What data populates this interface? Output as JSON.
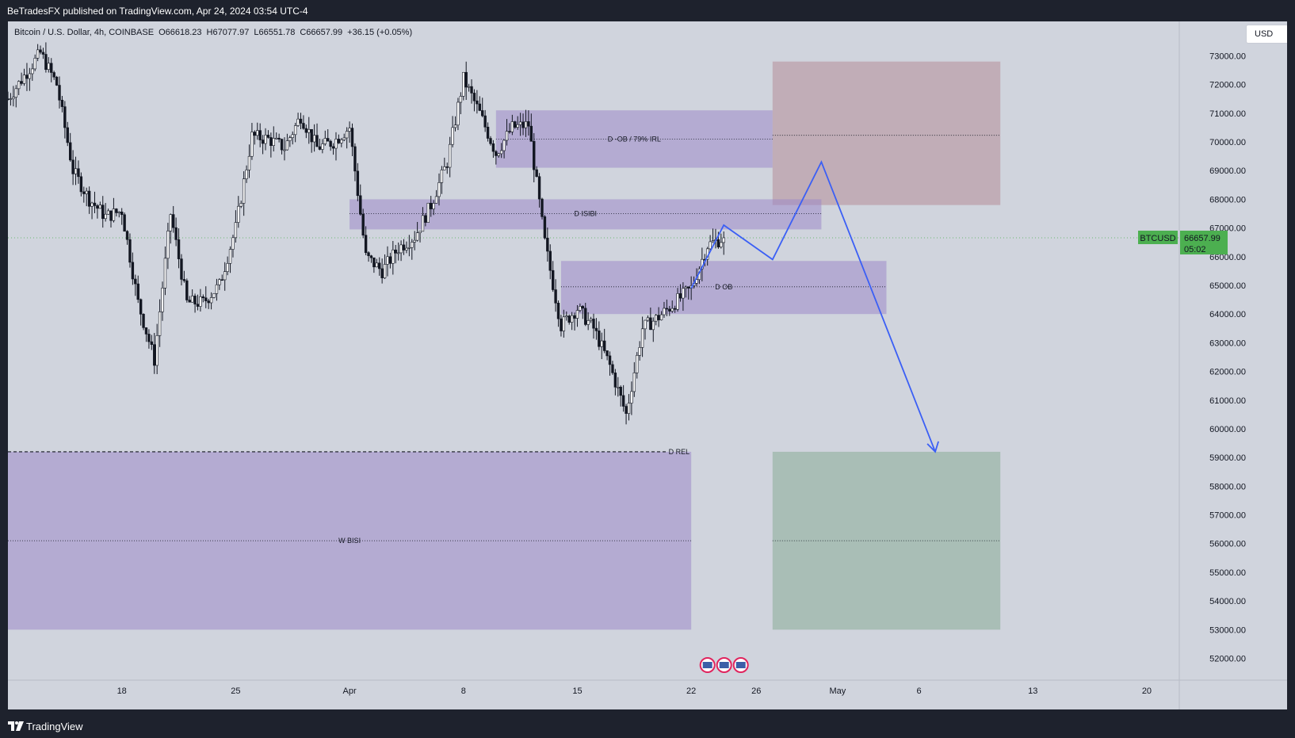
{
  "header": {
    "publisher": "BeTradesFX published on TradingView.com, Apr 24, 2024 03:54 UTC-4"
  },
  "legend": {
    "symbol": "Bitcoin / U.S. Dollar, 4h, COINBASE",
    "open": "O66618.23",
    "high": "H67077.97",
    "low": "L66551.78",
    "close": "C66657.99",
    "change": "+36.15 (+0.05%)"
  },
  "currency_button": "USD",
  "price_tag": {
    "symbol": "BTCUSD",
    "price": "66657.99",
    "countdown": "05:02"
  },
  "footer": {
    "brand": "TradingView"
  },
  "colors": {
    "background": "#d0d4dd",
    "candle_up": "#ffffff",
    "candle_down": "#131722",
    "zone_purple": "#9c88c8",
    "zone_red": "#b58d98",
    "zone_green": "#89ab96",
    "projection_line": "#3b5ff5",
    "price_tag": "#4caf50"
  },
  "chart_data": {
    "type": "candlestick",
    "title": "Bitcoin / U.S. Dollar, 4h, COINBASE",
    "y_axis": {
      "ticks": [
        52000,
        53000,
        54000,
        55000,
        56000,
        57000,
        58000,
        59000,
        60000,
        61000,
        62000,
        63000,
        64000,
        65000,
        66000,
        67000,
        68000,
        69000,
        70000,
        71000,
        72000,
        73000
      ],
      "tick_labels": [
        "52000.00",
        "53000.00",
        "54000.00",
        "55000.00",
        "56000.00",
        "57000.00",
        "58000.00",
        "59000.00",
        "60000.00",
        "61000.00",
        "62000.00",
        "63000.00",
        "64000.00",
        "65000.00",
        "66000.00",
        "67000.00",
        "68000.00",
        "69000.00",
        "70000.00",
        "71000.00",
        "72000.00",
        "73000.00"
      ],
      "range": [
        51600,
        74200
      ]
    },
    "x_axis": {
      "labels": [
        "18",
        "25",
        "Apr",
        "8",
        "15",
        "22",
        "26",
        "May",
        "6",
        "13",
        "20"
      ],
      "dates": [
        "2024-03-18",
        "2024-03-25",
        "2024-04-01",
        "2024-04-08",
        "2024-04-15",
        "2024-04-22",
        "2024-04-26",
        "2024-05-01",
        "2024-05-06",
        "2024-05-13",
        "2024-05-20"
      ],
      "range": [
        "2024-03-11",
        "2024-05-22"
      ]
    },
    "price_path": [
      [
        "2024-03-11",
        71500
      ],
      [
        "2024-03-12",
        72300
      ],
      [
        "2024-03-13",
        73100
      ],
      [
        "2024-03-14",
        72000
      ],
      [
        "2024-03-15",
        69000
      ],
      [
        "2024-03-16",
        68000
      ],
      [
        "2024-03-17",
        67400
      ],
      [
        "2024-03-18",
        67600
      ],
      [
        "2024-03-19",
        64400
      ],
      [
        "2024-03-20",
        62400
      ],
      [
        "2024-03-21",
        67500
      ],
      [
        "2024-03-22",
        64400
      ],
      [
        "2024-03-23",
        64400
      ],
      [
        "2024-03-24",
        65000
      ],
      [
        "2024-03-25",
        67000
      ],
      [
        "2024-03-26",
        70200
      ],
      [
        "2024-03-27",
        70100
      ],
      [
        "2024-03-28",
        69800
      ],
      [
        "2024-03-29",
        70900
      ],
      [
        "2024-03-30",
        69800
      ],
      [
        "2024-03-31",
        70000
      ],
      [
        "2024-04-01",
        70500
      ],
      [
        "2024-04-02",
        66000
      ],
      [
        "2024-04-03",
        65500
      ],
      [
        "2024-04-04",
        66300
      ],
      [
        "2024-04-05",
        66700
      ],
      [
        "2024-04-06",
        67800
      ],
      [
        "2024-04-07",
        69300
      ],
      [
        "2024-04-08",
        72200
      ],
      [
        "2024-04-09",
        71000
      ],
      [
        "2024-04-10",
        69600
      ],
      [
        "2024-04-11",
        70500
      ],
      [
        "2024-04-12",
        70600
      ],
      [
        "2024-04-13",
        66500
      ],
      [
        "2024-04-14",
        63600
      ],
      [
        "2024-04-15",
        64200
      ],
      [
        "2024-04-16",
        63500
      ],
      [
        "2024-04-17",
        62200
      ],
      [
        "2024-04-18",
        60500
      ],
      [
        "2024-04-19",
        63500
      ],
      [
        "2024-04-20",
        63900
      ],
      [
        "2024-04-21",
        64400
      ],
      [
        "2024-04-22",
        64900
      ],
      [
        "2024-04-23",
        66400
      ],
      [
        "2024-04-24",
        66658
      ]
    ],
    "zones": [
      {
        "label": "D -OB / 79% IRL",
        "start": "2024-04-10",
        "end": "2024-04-27",
        "low": 69100,
        "high": 71100,
        "mid": 70100
      },
      {
        "label": "D ISIBI",
        "start": "2024-04-01",
        "end": "2024-04-30",
        "low": 66950,
        "high": 68000,
        "mid": 67500
      },
      {
        "label": "D OB",
        "start": "2024-04-14",
        "end": "2024-05-04",
        "low": 64000,
        "high": 65850,
        "mid": 64950
      },
      {
        "label": "W BISI",
        "start": "2024-03-11",
        "end": "2024-04-22",
        "low": 53000,
        "high": 59200,
        "mid": 56100
      }
    ],
    "levels": [
      {
        "label": "D REL",
        "value": 59200,
        "start": "2024-03-11",
        "end": "2024-04-22"
      }
    ],
    "target_boxes": [
      {
        "kind": "stop",
        "start": "2024-04-27",
        "end": "2024-05-11",
        "low": 67800,
        "high": 72800,
        "mid": 70230
      },
      {
        "kind": "target",
        "start": "2024-04-27",
        "end": "2024-05-11",
        "low": 53000,
        "high": 59200,
        "mid": 56100
      }
    ],
    "projection": [
      [
        "2024-04-22",
        64900
      ],
      [
        "2024-04-24",
        67100
      ],
      [
        "2024-04-27",
        65900
      ],
      [
        "2024-04-30",
        69300
      ],
      [
        "2024-05-07",
        59200
      ]
    ],
    "last_price": 66657.99
  }
}
